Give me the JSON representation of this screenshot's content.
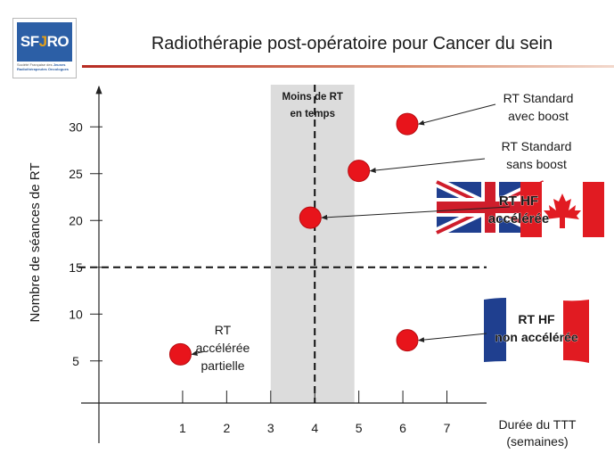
{
  "header": {
    "logo_left": "SF",
    "logo_accent": "J",
    "logo_right": "RO",
    "logo_lines": [
      "Société",
      "Française",
      "des",
      "Jeunes",
      "Radiothérapeutes",
      "Oncologues"
    ],
    "title": "Radiothérapie post-opératoire pour Cancer du sein"
  },
  "colors": {
    "point": "#e8141b",
    "band": "#dcdcdc",
    "axis": "#222222",
    "rule": "#b72b22"
  },
  "chart_data": {
    "type": "scatter",
    "title": "Radiothérapie post-opératoire pour Cancer du sein",
    "xlabel": [
      "Durée du TTT",
      "(semaines)"
    ],
    "ylabel": "Nombre de séances de RT",
    "xlim": [
      -0.9,
      7.9
    ],
    "ylim": [
      0.5,
      34.5
    ],
    "xticks": [
      1,
      2,
      3,
      4,
      5,
      6,
      7
    ],
    "yticks": [
      5,
      10,
      15,
      20,
      25,
      30
    ],
    "shaded_band": {
      "x": [
        3,
        4.9
      ],
      "label": [
        "Moins  de RT",
        "en temps"
      ]
    },
    "reference_lines": [
      {
        "axis": "x",
        "value": 4,
        "style": "dashed"
      },
      {
        "axis": "y",
        "value": 15,
        "style": "dashed"
      }
    ],
    "points": [
      {
        "name": "RT Standard avec boost",
        "x": 6.1,
        "y": 30.3,
        "label": [
          "RT Standard",
          "avec boost"
        ]
      },
      {
        "name": "RT Standard sans boost",
        "x": 5.0,
        "y": 25.3,
        "label": [
          "RT Standard",
          "sans boost"
        ]
      },
      {
        "name": "RT HF accélérée",
        "x": 3.9,
        "y": 20.3,
        "label": [
          "RT HF",
          "accélérée"
        ]
      },
      {
        "name": "RT HF non accélérée",
        "x": 6.1,
        "y": 7.2,
        "label": [
          "RT HF",
          "non accélérée"
        ]
      },
      {
        "name": "RT accélérée partielle",
        "x": 0.95,
        "y": 5.7,
        "label": [
          "RT",
          "accélérée",
          "partielle"
        ]
      }
    ]
  }
}
